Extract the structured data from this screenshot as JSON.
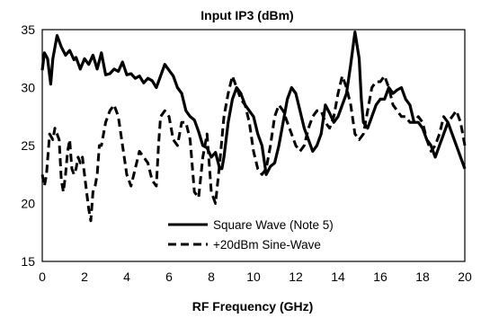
{
  "chart_data": {
    "type": "line",
    "title": "Input IP3 (dBm)",
    "xlabel": "RF Frequency (GHz)",
    "ylabel": "",
    "xlim": [
      0,
      20
    ],
    "ylim": [
      15,
      35
    ],
    "xticks": [
      0,
      2,
      4,
      6,
      8,
      10,
      12,
      14,
      16,
      18,
      20
    ],
    "yticks": [
      15,
      20,
      25,
      30,
      35
    ],
    "grid": false,
    "legend_position": "bottom-center",
    "colors": {
      "line": "#000000",
      "background": "#ffffff",
      "frame": "#000000"
    },
    "series": [
      {
        "name": "Square Wave (Note 5)",
        "style": "solid",
        "x": [
          0,
          0.1,
          0.25,
          0.4,
          0.5,
          0.7,
          0.9,
          1.1,
          1.3,
          1.5,
          1.6,
          1.8,
          2.0,
          2.2,
          2.4,
          2.6,
          2.8,
          3.0,
          3.2,
          3.4,
          3.6,
          3.8,
          4.0,
          4.2,
          4.4,
          4.6,
          4.8,
          5.0,
          5.2,
          5.4,
          5.6,
          5.8,
          6.0,
          6.2,
          6.4,
          6.6,
          6.8,
          7.0,
          7.2,
          7.4,
          7.6,
          7.8,
          8.0,
          8.2,
          8.4,
          8.5,
          8.6,
          8.8,
          9.0,
          9.2,
          9.4,
          9.6,
          9.8,
          10.0,
          10.2,
          10.4,
          10.6,
          10.8,
          11.0,
          11.2,
          11.4,
          11.6,
          11.8,
          12.0,
          12.2,
          12.4,
          12.6,
          12.8,
          13.0,
          13.2,
          13.4,
          13.6,
          13.8,
          14.0,
          14.2,
          14.4,
          14.6,
          14.8,
          15.0,
          15.1,
          15.2,
          15.4,
          15.6,
          15.8,
          16.0,
          16.2,
          16.4,
          16.6,
          16.8,
          17.0,
          17.2,
          17.4,
          17.6,
          17.8,
          18.0,
          18.2,
          18.4,
          18.6,
          18.8,
          19.0,
          19.2,
          19.4,
          19.6,
          19.8,
          20.0
        ],
        "y": [
          31.5,
          33.0,
          32.5,
          30.3,
          32.5,
          34.5,
          33.5,
          32.8,
          33.2,
          32.4,
          32.6,
          31.6,
          32.5,
          32.0,
          32.8,
          31.6,
          33.0,
          31.1,
          31.2,
          31.6,
          31.4,
          32.2,
          31.1,
          31.2,
          30.8,
          31.0,
          30.4,
          30.8,
          30.6,
          30.0,
          31.0,
          32.0,
          31.5,
          31.0,
          30.0,
          29.5,
          28.0,
          27.5,
          27.2,
          26.2,
          25.0,
          24.8,
          24.0,
          24.4,
          23.0,
          23.0,
          24.0,
          27.0,
          29.0,
          30.0,
          29.5,
          28.5,
          28.0,
          27.5,
          26.0,
          25.0,
          22.5,
          23.2,
          23.5,
          25.0,
          27.0,
          29.0,
          30.0,
          29.5,
          28.0,
          26.5,
          25.5,
          24.5,
          25.0,
          26.0,
          28.5,
          27.8,
          27.0,
          27.5,
          28.5,
          29.5,
          32.0,
          34.8,
          32.5,
          29.0,
          27.0,
          26.5,
          27.5,
          28.5,
          29.0,
          29.0,
          30.0,
          29.5,
          29.8,
          30.0,
          29.0,
          28.5,
          27.0,
          27.0,
          26.5,
          25.5,
          25.0,
          24.0,
          25.0,
          26.0,
          27.0,
          26.0,
          25.0,
          24.0,
          23.0
        ]
      },
      {
        "name": "+20dBm Sine-Wave",
        "style": "dashed",
        "x": [
          0,
          0.1,
          0.2,
          0.35,
          0.5,
          0.6,
          0.7,
          0.8,
          0.9,
          1.0,
          1.1,
          1.2,
          1.3,
          1.4,
          1.5,
          1.6,
          1.7,
          1.8,
          1.9,
          2.0,
          2.1,
          2.2,
          2.3,
          2.4,
          2.5,
          2.6,
          2.7,
          2.8,
          3.0,
          3.2,
          3.4,
          3.6,
          3.8,
          4.0,
          4.2,
          4.4,
          4.6,
          4.8,
          5.0,
          5.2,
          5.4,
          5.5,
          5.6,
          5.8,
          6.0,
          6.2,
          6.4,
          6.6,
          6.8,
          7.0,
          7.2,
          7.4,
          7.6,
          7.8,
          8.0,
          8.2,
          8.4,
          8.6,
          8.8,
          9.0,
          9.2,
          9.4,
          9.6,
          9.8,
          10.0,
          10.2,
          10.4,
          10.6,
          10.8,
          11.0,
          11.2,
          11.4,
          11.6,
          11.8,
          12.0,
          12.2,
          12.4,
          12.6,
          12.8,
          13.0,
          13.2,
          13.4,
          13.6,
          13.8,
          14.0,
          14.2,
          14.4,
          14.6,
          14.8,
          15.0,
          15.2,
          15.4,
          15.6,
          15.8,
          16.0,
          16.2,
          16.4,
          16.6,
          16.8,
          17.0,
          17.2,
          17.4,
          17.6,
          17.8,
          18.0,
          18.2,
          18.4,
          18.6,
          18.8,
          19.0,
          19.2,
          19.4,
          19.6,
          19.8,
          20.0
        ],
        "y": [
          22.5,
          21.5,
          22.5,
          26.0,
          25.5,
          26.5,
          26.0,
          25.5,
          22.0,
          21.0,
          22.5,
          24.5,
          25.5,
          23.0,
          22.5,
          23.0,
          24.0,
          23.5,
          24.0,
          22.5,
          21.0,
          19.5,
          18.5,
          21.0,
          21.5,
          22.5,
          25.0,
          25.0,
          27.0,
          28.0,
          28.5,
          27.5,
          25.0,
          22.5,
          21.5,
          23.0,
          24.5,
          24.0,
          23.5,
          22.0,
          21.5,
          25.0,
          27.5,
          28.0,
          27.5,
          25.5,
          25.0,
          27.0,
          27.0,
          25.5,
          21.0,
          20.5,
          24.0,
          26.0,
          21.0,
          20.0,
          23.5,
          27.5,
          29.5,
          31.0,
          30.0,
          29.0,
          28.5,
          27.0,
          24.5,
          23.0,
          22.5,
          23.0,
          25.0,
          27.5,
          28.5,
          28.0,
          27.0,
          26.0,
          25.0,
          24.5,
          25.0,
          26.5,
          27.5,
          28.0,
          28.0,
          27.0,
          26.5,
          27.5,
          29.5,
          31.0,
          30.0,
          28.5,
          26.0,
          25.5,
          26.0,
          28.0,
          30.0,
          30.5,
          30.5,
          31.0,
          30.0,
          28.5,
          28.0,
          27.5,
          27.5,
          27.0,
          27.0,
          27.5,
          27.0,
          25.5,
          24.5,
          25.0,
          26.0,
          27.5,
          27.0,
          27.5,
          28.0,
          27.0,
          25.0
        ]
      }
    ]
  }
}
